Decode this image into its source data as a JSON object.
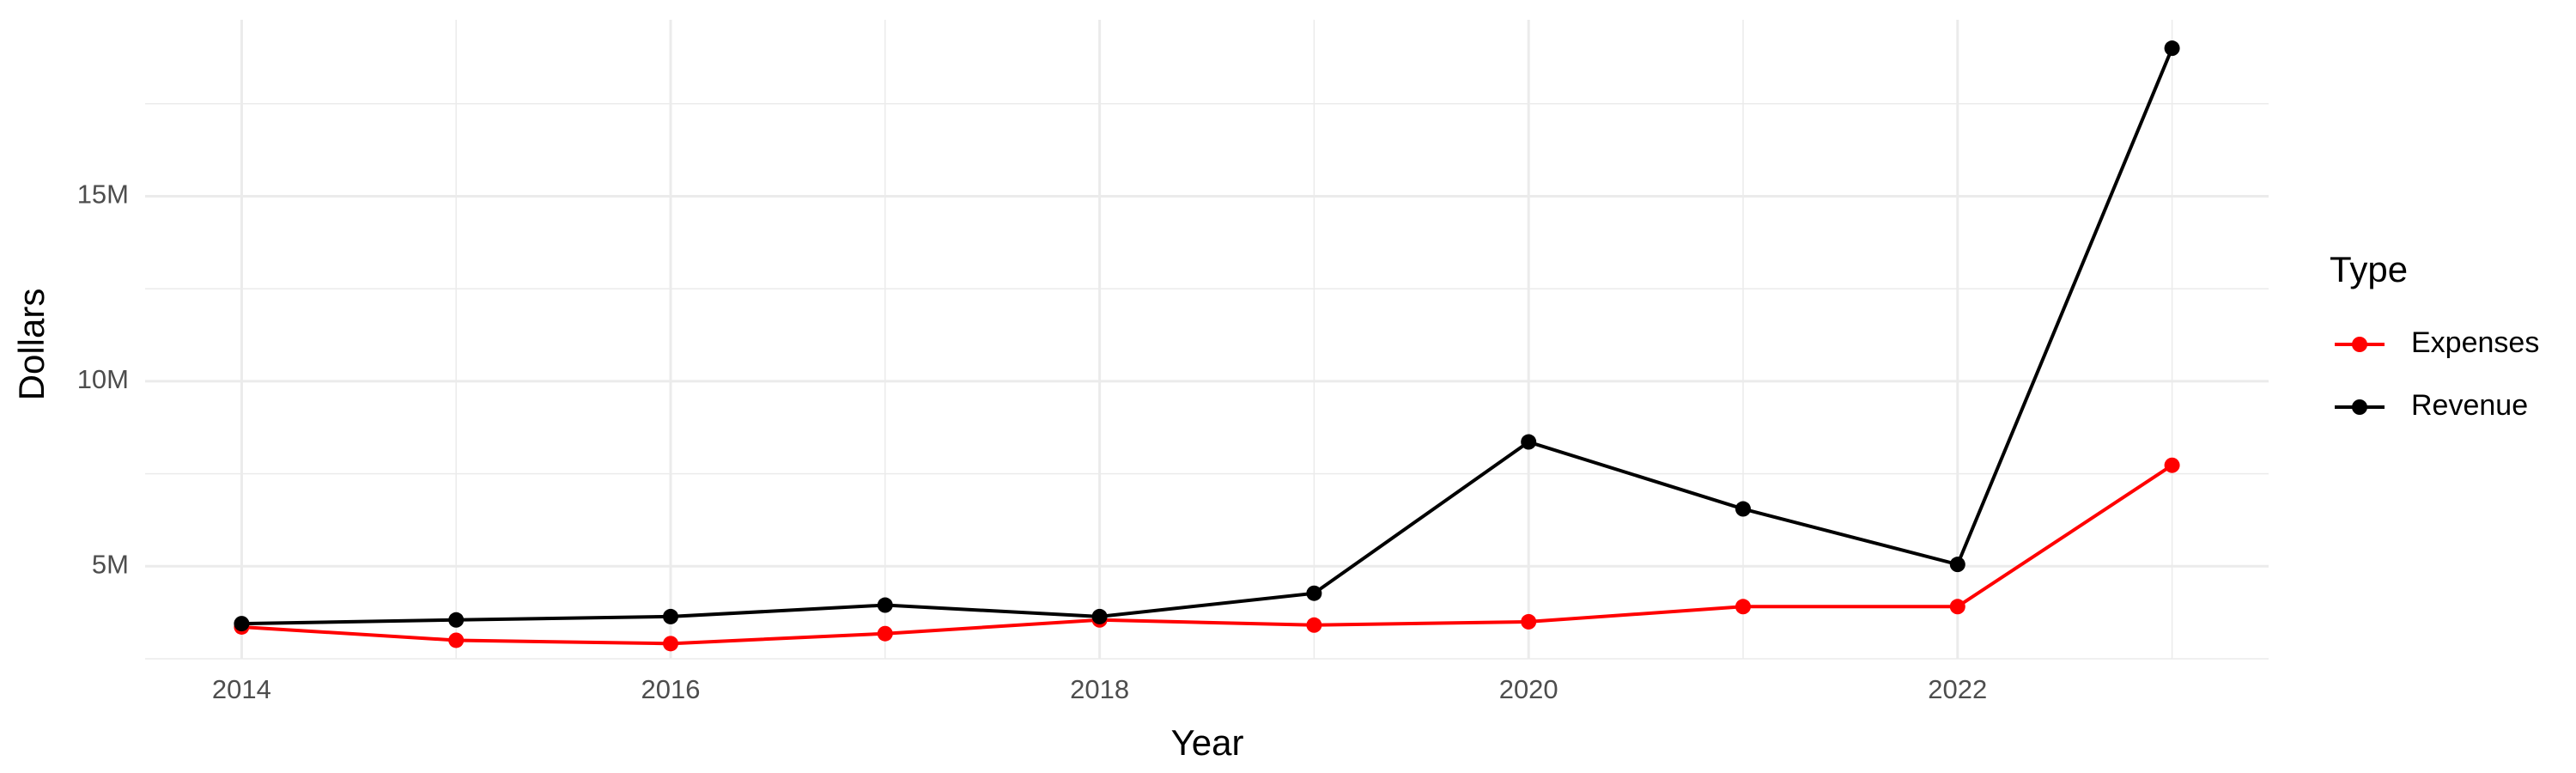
{
  "chart_data": {
    "type": "line",
    "x_label": "Year",
    "y_label": "Dollars",
    "legend_title": "Type",
    "legend_position": "right",
    "x": [
      2014,
      2015,
      2016,
      2017,
      2018,
      2019,
      2020,
      2021,
      2022,
      2023
    ],
    "series": [
      {
        "name": "Expenses",
        "color": "#ff0000",
        "values": [
          3360000,
          3000000,
          2910000,
          3180000,
          3550000,
          3410000,
          3500000,
          3910000,
          3910000,
          7730000
        ]
      },
      {
        "name": "Revenue",
        "color": "#000000",
        "values": [
          3450000,
          3550000,
          3640000,
          3950000,
          3640000,
          4270000,
          8360000,
          6550000,
          5050000,
          19000000
        ]
      }
    ],
    "xlim": [
      2013.55,
      2023.45
    ],
    "xticks": [
      2014,
      2016,
      2018,
      2020,
      2022
    ],
    "ylim": [
      2500000,
      19770000
    ],
    "yticks": [
      {
        "value": 5000000,
        "label": "5M"
      },
      {
        "value": 10000000,
        "label": "10M"
      },
      {
        "value": 15000000,
        "label": "15M"
      }
    ],
    "grid": true,
    "minor_grid": true
  }
}
